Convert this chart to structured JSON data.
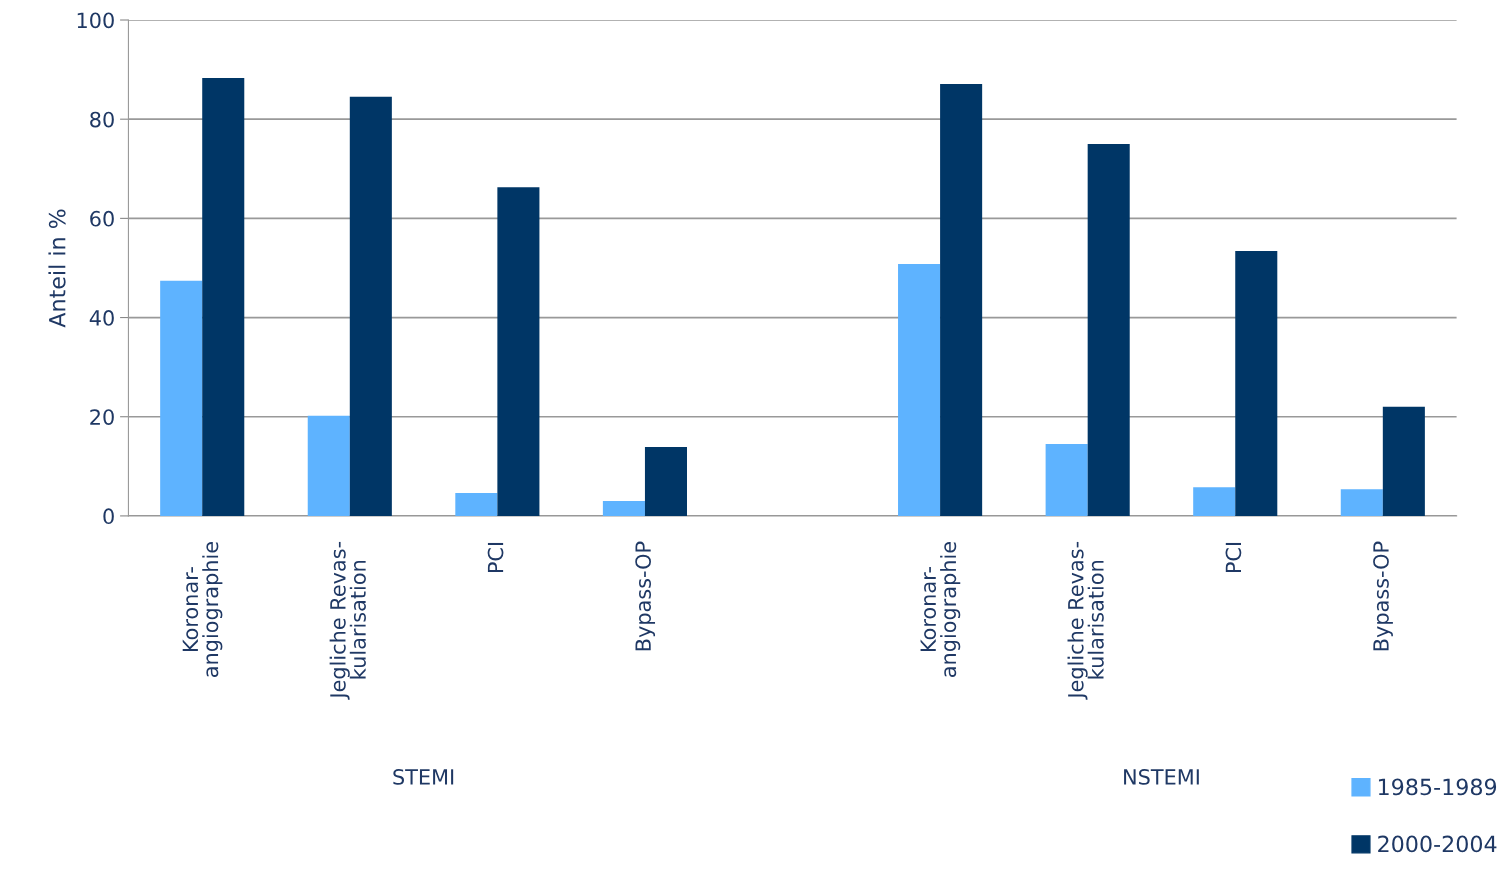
{
  "chart_data": {
    "type": "bar",
    "ylabel": "Anteil in %",
    "categories": [
      "Koronar-\nangiographie",
      "Jegliche Revas-\nkularisation",
      "PCI",
      "Bypass-OP",
      null,
      "Koronar-\nangiographie",
      "Jegliche Revas-\nkularisation",
      "PCI",
      "Bypass-OP"
    ],
    "series": [
      {
        "name": "1985-1989",
        "color": "#5eb3ff",
        "values": [
          47.4,
          20.2,
          4.6,
          3.0,
          null,
          50.8,
          14.5,
          5.8,
          5.4
        ]
      },
      {
        "name": "2000-2004",
        "color": "#003666",
        "values": [
          88.3,
          84.5,
          66.3,
          13.9,
          null,
          87.1,
          75.0,
          53.4,
          22.0
        ]
      }
    ],
    "ylim": [
      0,
      100
    ],
    "yticks": [
      0,
      20,
      40,
      60,
      80,
      100
    ],
    "grid": "y",
    "legend": "bottom right",
    "annotations": [
      "STEMI",
      "NSTEMI"
    ]
  }
}
